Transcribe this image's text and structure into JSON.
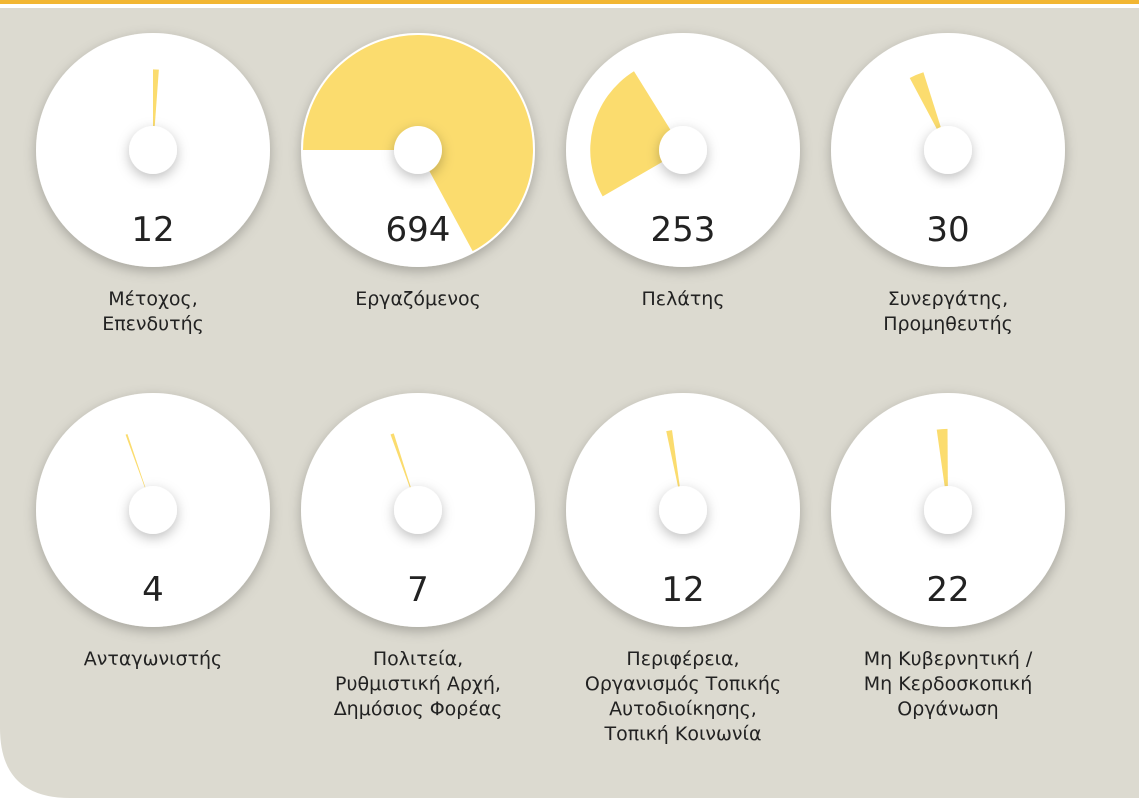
{
  "items": [
    {
      "value": 12,
      "label": [
        "Μέτοχος,",
        "Επενδυτής"
      ]
    },
    {
      "value": 694,
      "label": [
        "Εργαζόμενος"
      ]
    },
    {
      "value": 253,
      "label": [
        "Πελάτης"
      ]
    },
    {
      "value": 30,
      "label": [
        "Συνεργάτης,",
        "Προμηθευτής"
      ]
    },
    {
      "value": 4,
      "label": [
        "Ανταγωνιστής"
      ]
    },
    {
      "value": 7,
      "label": [
        "Πολιτεία,",
        "Ρυθμιστική Αρχή,",
        "Δημόσιος Φορέας"
      ]
    },
    {
      "value": 12,
      "label": [
        "Περιφέρεια,",
        "Οργανισμός Τοπικής",
        "Αυτοδιοίκησης,",
        "Τοπική Κοινωνία"
      ]
    },
    {
      "value": 22,
      "label": [
        "Μη Κυβερνητική /",
        "Μη Κερδοσκοπική",
        "Οργάνωση"
      ]
    }
  ]
}
